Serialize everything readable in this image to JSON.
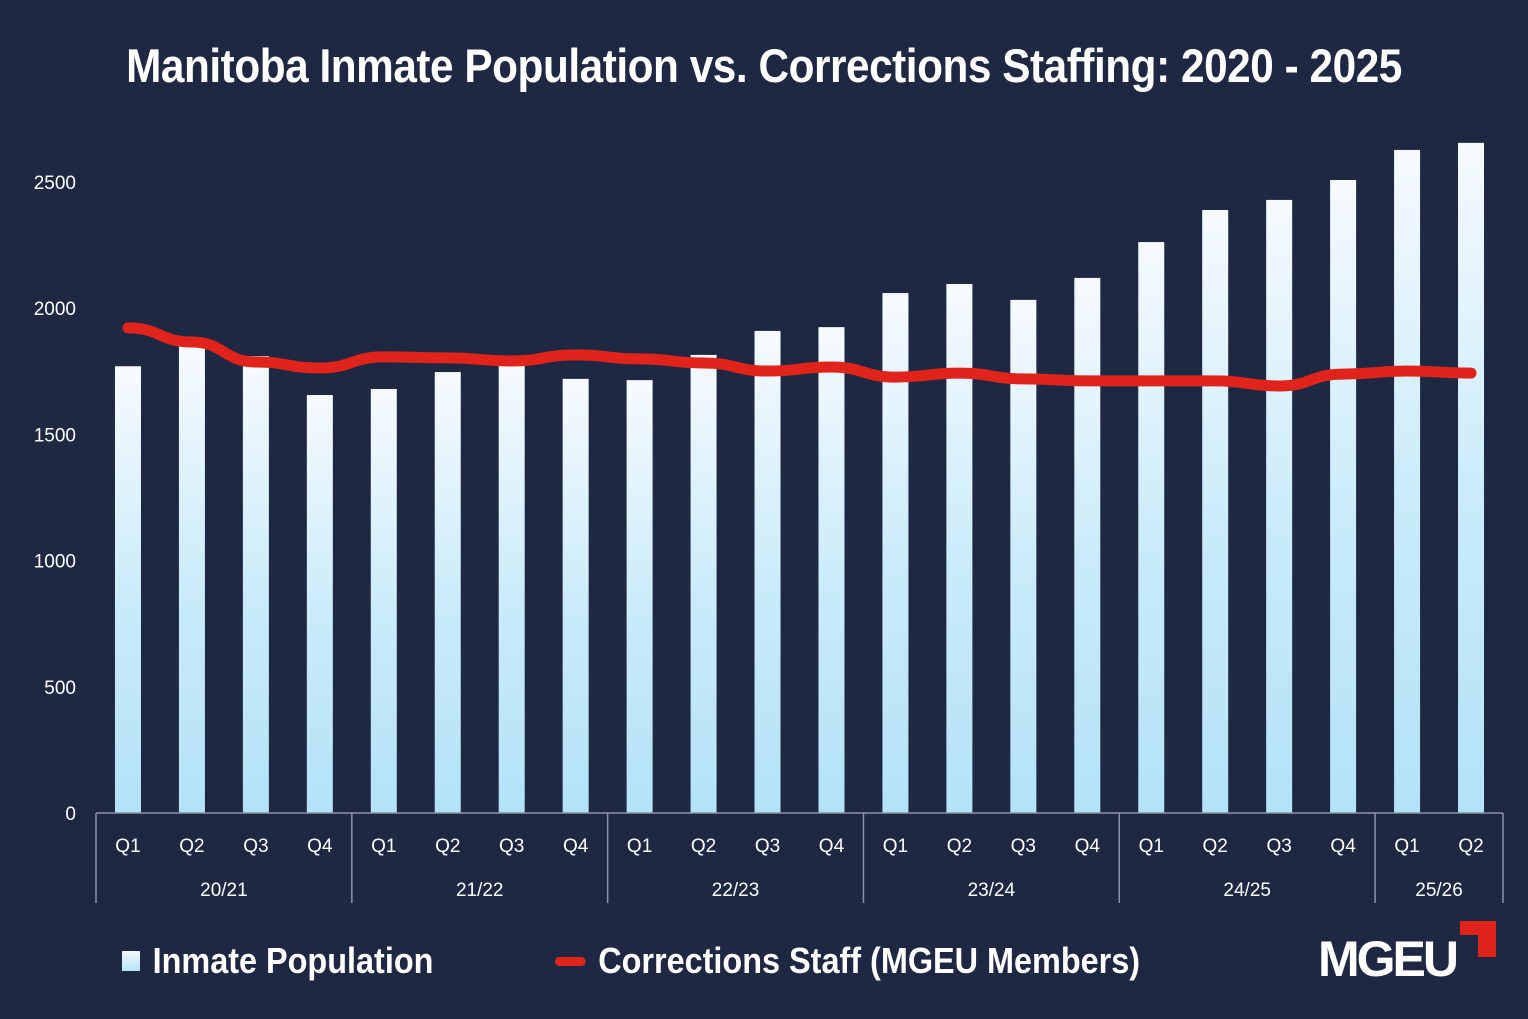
{
  "chart_data": {
    "type": "bar",
    "title": "Manitoba Inmate Population vs. Corrections Staffing: 2020 - 2025",
    "categories": [
      "Q1",
      "Q2",
      "Q3",
      "Q4",
      "Q1",
      "Q2",
      "Q3",
      "Q4",
      "Q1",
      "Q2",
      "Q3",
      "Q4",
      "Q1",
      "Q2",
      "Q3",
      "Q4",
      "Q1",
      "Q2",
      "Q3",
      "Q4",
      "Q1",
      "Q2"
    ],
    "groups": [
      {
        "label": "20/21",
        "count": 4
      },
      {
        "label": "21/22",
        "count": 4
      },
      {
        "label": "22/23",
        "count": 4
      },
      {
        "label": "23/24",
        "count": 4
      },
      {
        "label": "24/25",
        "count": 4
      },
      {
        "label": "25/26",
        "count": 2
      }
    ],
    "series": [
      {
        "name": "Inmate Population",
        "type": "bar",
        "color": "#c2e8f9",
        "values": [
          1770,
          1850,
          1810,
          1656,
          1680,
          1747,
          1790,
          1720,
          1715,
          1815,
          1910,
          1925,
          2060,
          2096,
          2033,
          2120,
          2262,
          2389,
          2429,
          2508,
          2627,
          2655
        ]
      },
      {
        "name": "Corrections Staff (MGEU Members)",
        "type": "line",
        "color": "#e0241b",
        "values": [
          1922,
          1866,
          1787,
          1763,
          1807,
          1803,
          1791,
          1815,
          1799,
          1783,
          1751,
          1767,
          1727,
          1743,
          1720,
          1712,
          1712,
          1712,
          1692,
          1739,
          1751,
          1743
        ]
      }
    ],
    "yticks": [
      0,
      500,
      1000,
      1500,
      2000,
      2500
    ],
    "ylim": [
      0,
      2700
    ],
    "grid": false,
    "legend": "bottom"
  },
  "logo": "MGEU",
  "colors": {
    "background": "#1f2842",
    "text": "#ffffff",
    "axis": "#8a93a8"
  }
}
